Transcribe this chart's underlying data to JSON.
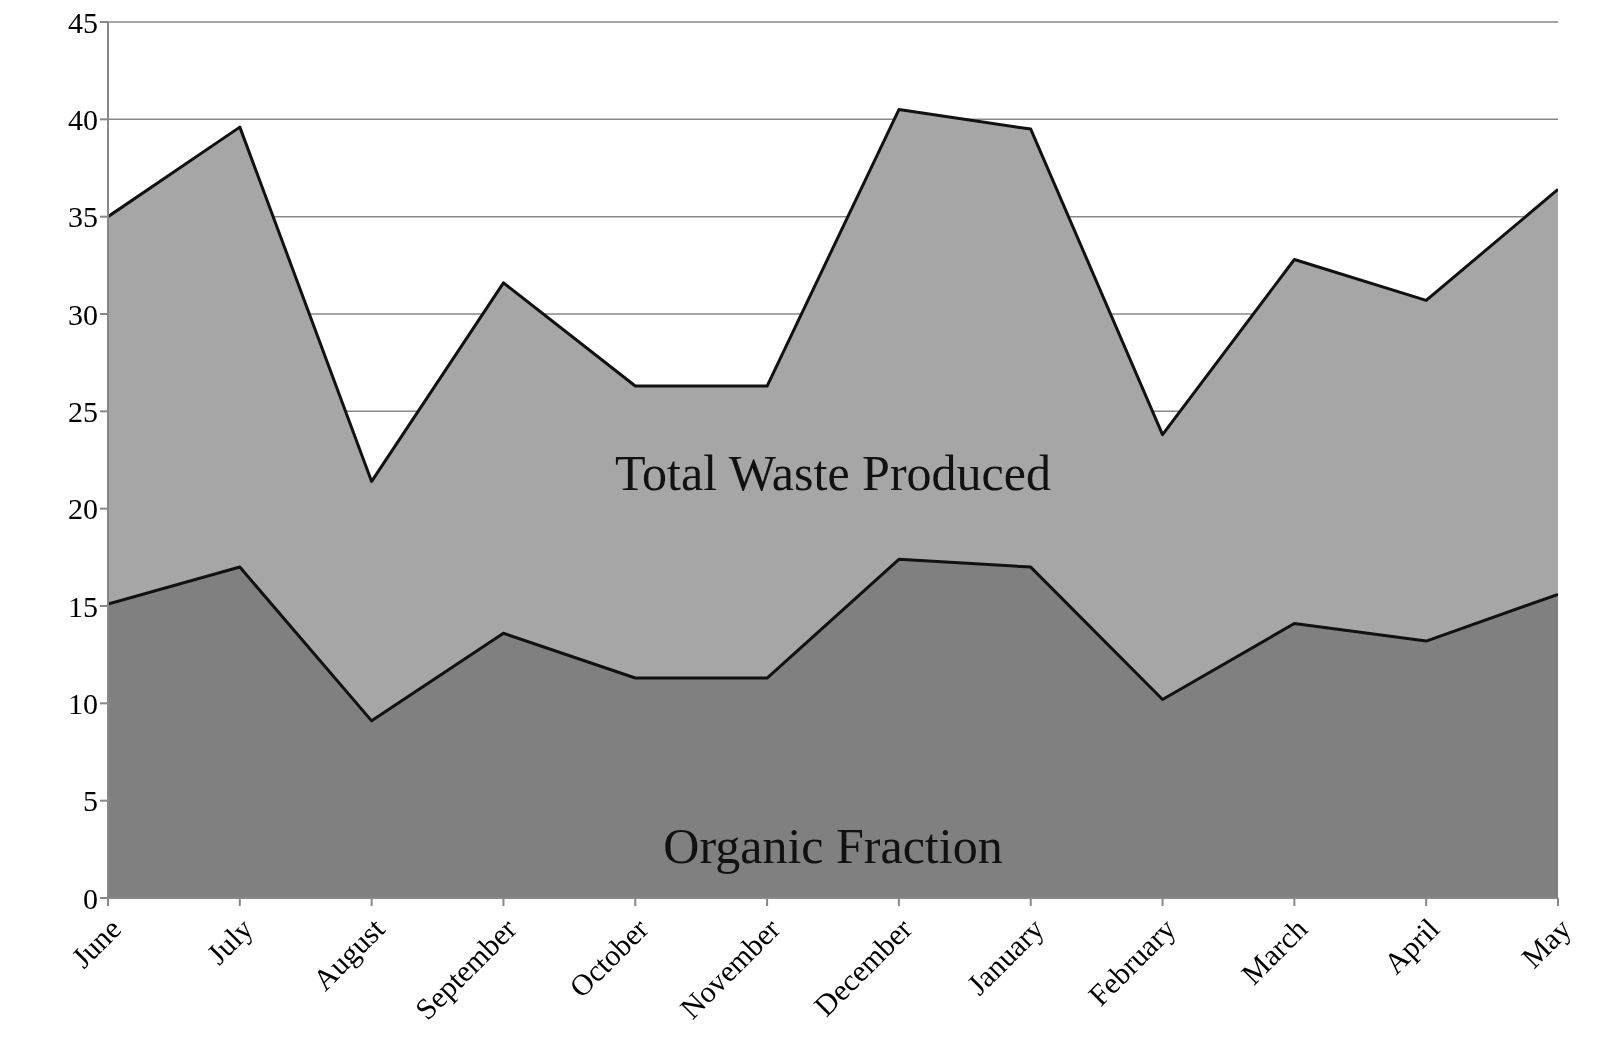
{
  "chart_data": {
    "type": "area",
    "categories": [
      "June",
      "July",
      "August",
      "September",
      "October",
      "November",
      "December",
      "January",
      "February",
      "March",
      "April",
      "May"
    ],
    "series": [
      {
        "name": "Total Waste Produced",
        "color": "#a6a6a6",
        "values": [
          35.0,
          39.6,
          21.4,
          31.6,
          26.3,
          26.3,
          40.5,
          39.5,
          23.8,
          32.8,
          30.7,
          36.4
        ]
      },
      {
        "name": "Organic Fraction",
        "color": "#808080",
        "values": [
          15.1,
          17.0,
          9.1,
          13.6,
          11.3,
          11.3,
          17.4,
          17.0,
          10.2,
          14.1,
          13.2,
          15.6
        ]
      }
    ],
    "ylim": [
      0,
      45
    ],
    "yticks": [
      0,
      5,
      10,
      15,
      20,
      25,
      30,
      35,
      40,
      45
    ],
    "grid": "y"
  }
}
